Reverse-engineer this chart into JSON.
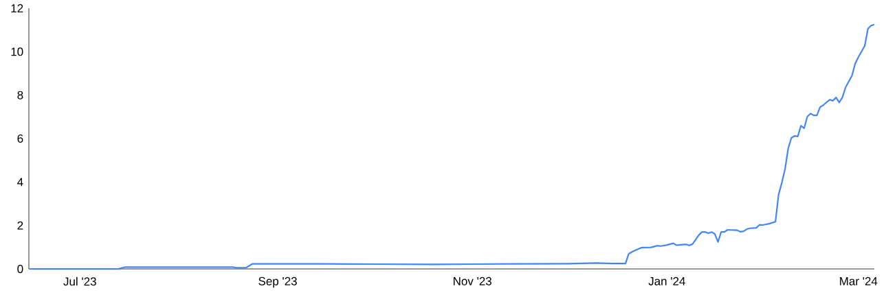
{
  "chart_data": {
    "type": "line",
    "color": "#4285f4",
    "x": [
      "2023-06-15",
      "2023-07-13",
      "2023-07-15",
      "2023-08-18",
      "2023-08-19",
      "2023-08-22",
      "2023-08-24",
      "2023-09-15",
      "2023-10-01",
      "2023-10-20",
      "2023-11-01",
      "2023-11-15",
      "2023-12-01",
      "2023-12-10",
      "2023-12-15",
      "2023-12-19",
      "2023-12-20",
      "2023-12-21",
      "2023-12-22",
      "2023-12-24",
      "2023-12-27",
      "2023-12-29",
      "2023-12-30",
      "2024-01-01",
      "2024-01-03",
      "2024-01-04",
      "2024-01-07",
      "2024-01-08",
      "2024-01-09",
      "2024-01-11",
      "2024-01-12",
      "2024-01-13",
      "2024-01-14",
      "2024-01-15",
      "2024-01-16",
      "2024-01-17",
      "2024-01-18",
      "2024-01-19",
      "2024-01-20",
      "2024-01-23",
      "2024-01-24",
      "2024-01-25",
      "2024-01-26",
      "2024-01-27",
      "2024-01-29",
      "2024-01-30",
      "2024-01-31",
      "2024-02-02",
      "2024-02-04",
      "2024-02-05",
      "2024-02-06",
      "2024-02-07",
      "2024-02-08",
      "2024-02-09",
      "2024-02-10",
      "2024-02-11",
      "2024-02-12",
      "2024-02-13",
      "2024-02-14",
      "2024-02-15",
      "2024-02-16",
      "2024-02-17",
      "2024-02-18",
      "2024-02-19",
      "2024-02-21",
      "2024-02-22",
      "2024-02-23",
      "2024-02-24",
      "2024-02-25",
      "2024-02-26",
      "2024-02-28",
      "2024-02-29",
      "2024-03-01",
      "2024-03-02",
      "2024-03-03",
      "2024-03-04",
      "2024-03-05",
      "2024-03-06"
    ],
    "values": [
      0,
      0,
      0.08,
      0.08,
      0.05,
      0.05,
      0.23,
      0.23,
      0.22,
      0.21,
      0.22,
      0.23,
      0.24,
      0.27,
      0.25,
      0.25,
      0.69,
      0.78,
      0.85,
      0.98,
      0.99,
      1.07,
      1.05,
      1.1,
      1.18,
      1.09,
      1.13,
      1.08,
      1.14,
      1.56,
      1.7,
      1.7,
      1.64,
      1.7,
      1.61,
      1.24,
      1.7,
      1.7,
      1.8,
      1.78,
      1.71,
      1.73,
      1.83,
      1.87,
      1.89,
      2.03,
      2.02,
      2.08,
      2.17,
      3.43,
      3.96,
      4.59,
      5.54,
      6.03,
      6.12,
      6.1,
      6.59,
      6.48,
      7.01,
      7.15,
      7.07,
      7.07,
      7.45,
      7.54,
      7.79,
      7.74,
      7.89,
      7.66,
      7.9,
      8.36,
      8.9,
      9.45,
      9.75,
      10.01,
      10.27,
      11.06,
      11.2,
      11.25
    ],
    "xlim": [
      "2023-06-15",
      "2024-03-06"
    ],
    "ylim": [
      0,
      12
    ],
    "xticks": [
      {
        "value": "2023-07-01",
        "label": "Jul '23"
      },
      {
        "value": "2023-09-01",
        "label": "Sep '23"
      },
      {
        "value": "2023-11-01",
        "label": "Nov '23"
      },
      {
        "value": "2024-01-01",
        "label": "Jan '24"
      },
      {
        "value": "2024-03-01",
        "label": "Mar '24"
      }
    ],
    "yticks": [
      0,
      2,
      4,
      6,
      8,
      10,
      12
    ]
  }
}
